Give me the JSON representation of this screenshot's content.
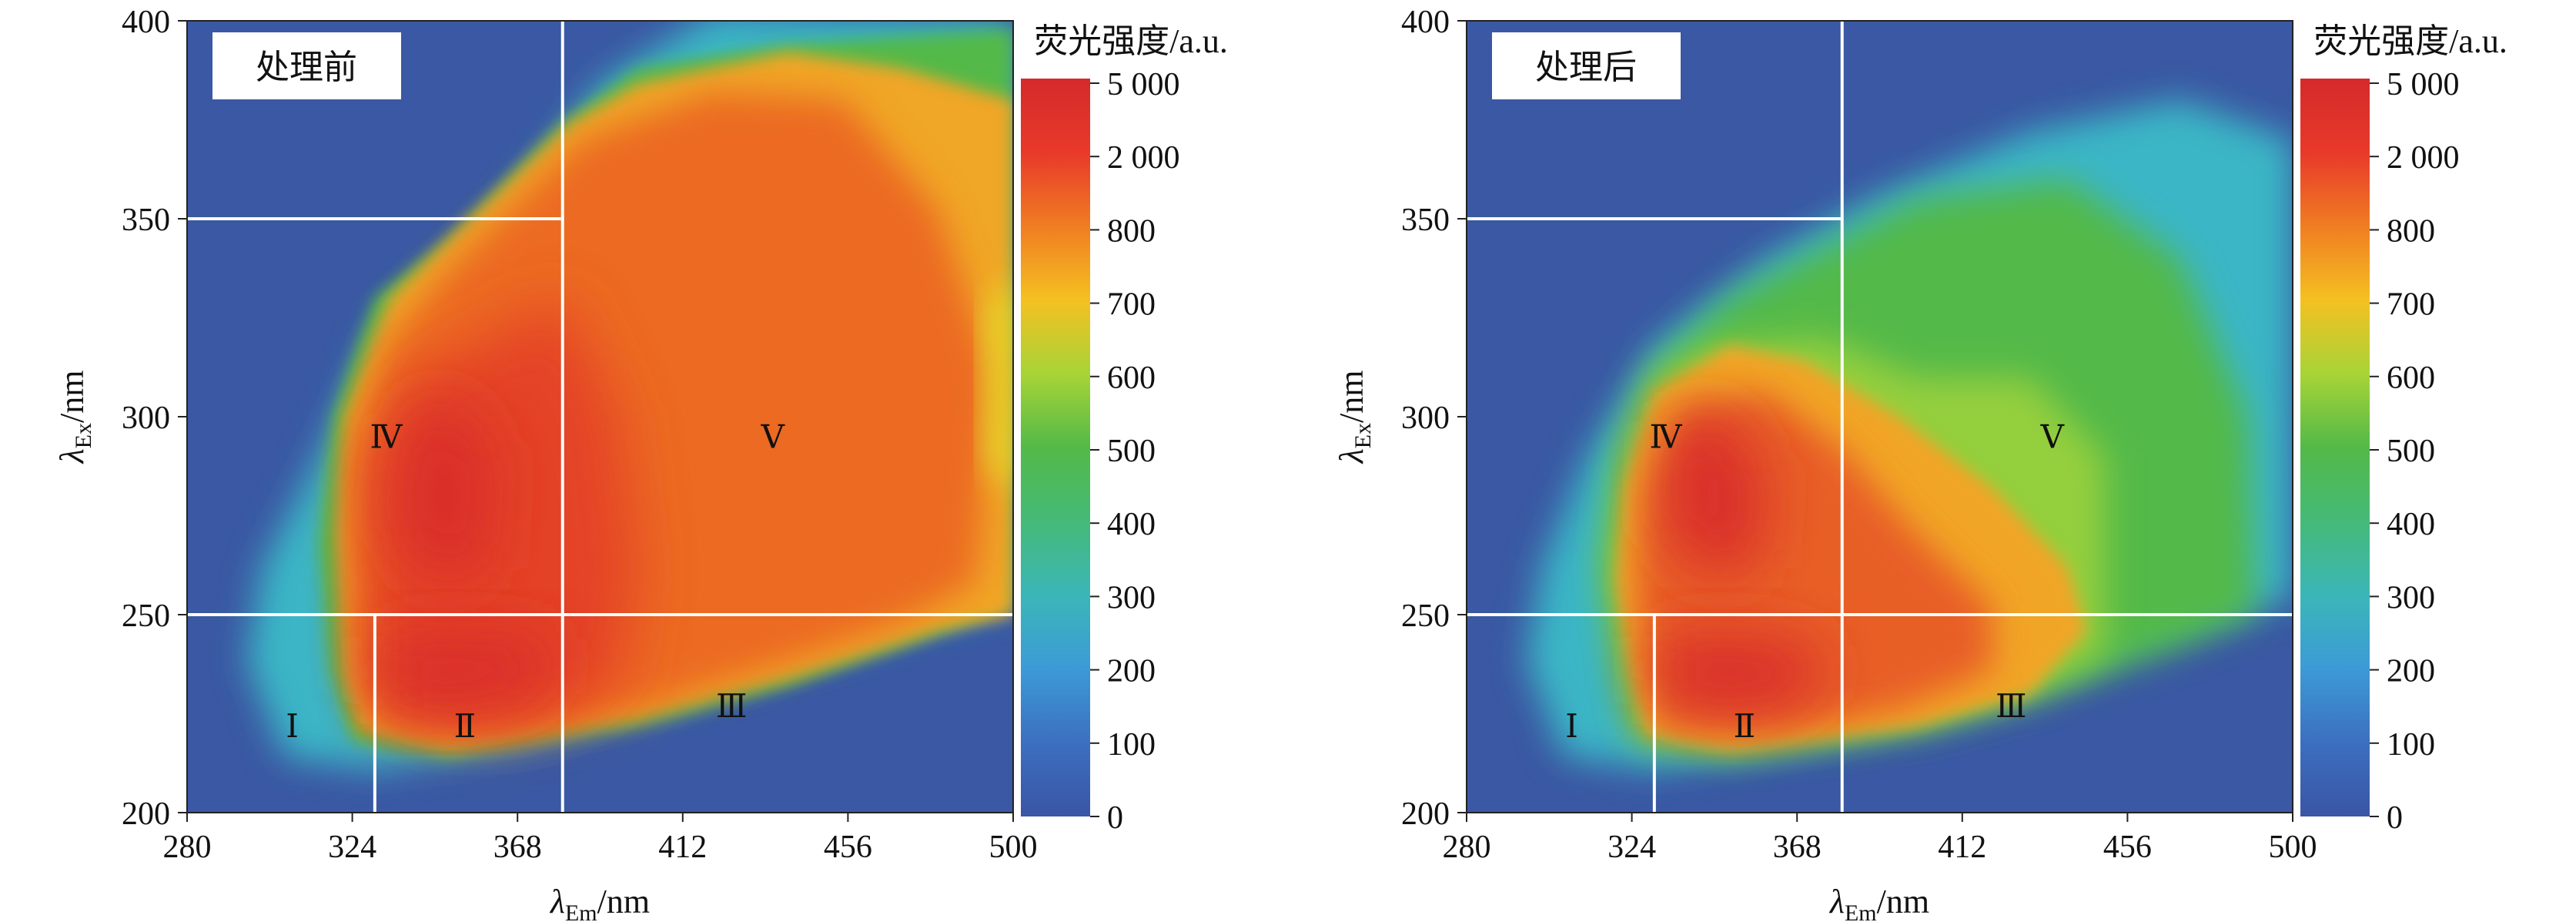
{
  "chart_data": [
    {
      "type": "heatmap",
      "title": "处理前",
      "xlabel": "λEm/nm",
      "ylabel": "λEx/nm",
      "xlim": [
        280,
        500
      ],
      "ylim": [
        200,
        400
      ],
      "x_ticks": [
        "280",
        "324",
        "368",
        "412",
        "456",
        "500"
      ],
      "y_ticks": [
        "200",
        "250",
        "300",
        "350",
        "400"
      ],
      "grid_lines": {
        "x": [
          330,
          380
        ],
        "y": [
          250,
          350
        ]
      },
      "regions": [
        {
          "label": "Ⅰ",
          "em": 308,
          "ex": 222
        },
        {
          "label": "Ⅱ",
          "em": 354,
          "ex": 222
        },
        {
          "label": "Ⅲ",
          "em": 425,
          "ex": 227
        },
        {
          "label": "Ⅳ",
          "em": 333,
          "ex": 295
        },
        {
          "label": "Ⅴ",
          "em": 436,
          "ex": 295
        }
      ],
      "intensity_peaks": [
        {
          "em": 350,
          "ex": 280,
          "value": 5000
        },
        {
          "em": 354,
          "ex": 233,
          "value": 5000
        },
        {
          "em": 400,
          "ex": 310,
          "value": 1500
        },
        {
          "em": 430,
          "ex": 350,
          "value": 1200
        },
        {
          "em": 470,
          "ex": 330,
          "value": 900
        }
      ],
      "colorbar": {
        "label": "荧光强度/a.u.",
        "ticks": [
          "5 000",
          "2 000",
          "800",
          "700",
          "600",
          "500",
          "400",
          "300",
          "200",
          "100",
          "0"
        ]
      }
    },
    {
      "type": "heatmap",
      "title": "处理后",
      "xlabel": "λEm/nm",
      "ylabel": "λEx/nm",
      "xlim": [
        280,
        500
      ],
      "ylim": [
        200,
        400
      ],
      "x_ticks": [
        "280",
        "324",
        "368",
        "412",
        "456",
        "500"
      ],
      "y_ticks": [
        "200",
        "250",
        "300",
        "350",
        "400"
      ],
      "grid_lines": {
        "x": [
          330,
          380
        ],
        "y": [
          250,
          350
        ]
      },
      "regions": [
        {
          "label": "Ⅰ",
          "em": 308,
          "ex": 222
        },
        {
          "label": "Ⅱ",
          "em": 354,
          "ex": 222
        },
        {
          "label": "Ⅲ",
          "em": 425,
          "ex": 227
        },
        {
          "label": "Ⅳ",
          "em": 333,
          "ex": 295
        },
        {
          "label": "Ⅴ",
          "em": 436,
          "ex": 295
        }
      ],
      "intensity_peaks": [
        {
          "em": 345,
          "ex": 282,
          "value": 5000
        },
        {
          "em": 355,
          "ex": 233,
          "value": 5000
        },
        {
          "em": 395,
          "ex": 255,
          "value": 1500
        },
        {
          "em": 430,
          "ex": 300,
          "value": 600
        }
      ],
      "colorbar": {
        "label": "荧光强度/a.u.",
        "ticks": [
          "5 000",
          "2 000",
          "800",
          "700",
          "600",
          "500",
          "400",
          "300",
          "200",
          "100",
          "0"
        ]
      }
    }
  ],
  "colors": {
    "background_blue": "#3a58a3",
    "colorbar_stops": [
      "#d52a2b",
      "#ea4a26",
      "#f07d22",
      "#f5b821",
      "#e3e42a",
      "#98cf3a",
      "#53b948",
      "#42ba86",
      "#3bb3c6",
      "#3c87d0",
      "#3a5aa8"
    ]
  }
}
